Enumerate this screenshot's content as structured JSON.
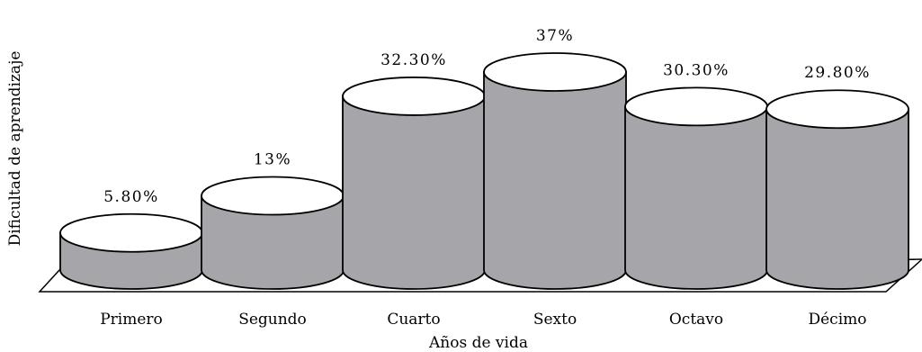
{
  "chart_data": {
    "type": "bar",
    "bar_style": "3d-cylinder",
    "categories": [
      "Primero",
      "Segundo",
      "Cuarto",
      "Sexto",
      "Octavo",
      "Décimo"
    ],
    "values": [
      5.8,
      13,
      32.3,
      37,
      30.3,
      29.8
    ],
    "data_labels": [
      "5.80%",
      "13%",
      "32.30%",
      "37%",
      "30.30%",
      "29.80%"
    ],
    "title": "",
    "xlabel": "Años de vida",
    "ylabel": "Dificultad de aprendizaje",
    "ylim": [
      0,
      40
    ],
    "grid": false,
    "legend": "none",
    "colors": {
      "bar_side": "#a6a6aa",
      "bar_top": "#ffffff",
      "stroke": "#000000"
    }
  }
}
